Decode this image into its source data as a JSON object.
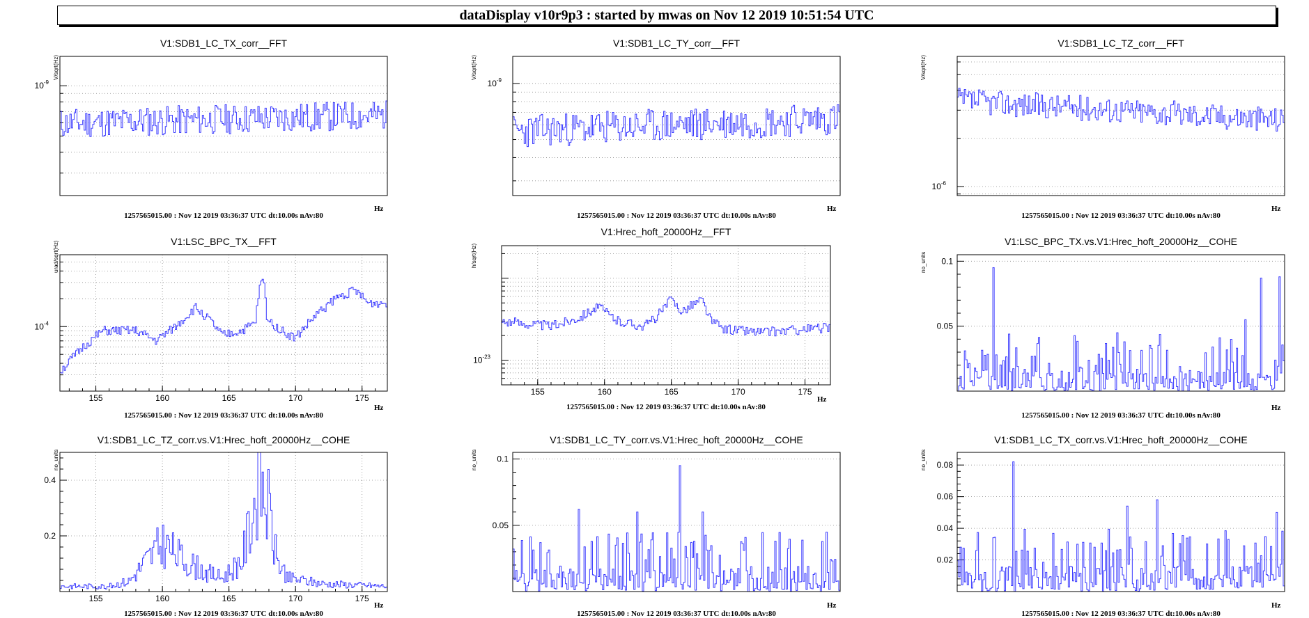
{
  "header": {
    "title": "dataDisplay v10r9p3 : started by mwas on Nov 12 2019 10:51:54 UTC"
  },
  "colors": {
    "trace": "#3a3aff",
    "grid": "#888888",
    "axis": "#000000"
  },
  "chart_data": [
    {
      "type": "line",
      "title": "V1:SDB1_LC_TX_corr__FFT",
      "ylabel": "V/sqrt(Hz)",
      "xlabel": "Hz",
      "footer": "1257565015.00 : Nov 12 2019 03:36:37 UTC dt:10.00s nAv:80",
      "yscale": "log",
      "ylim": [
        2.2e-10,
        1.5e-09
      ],
      "yticks": [
        {
          "v": 1e-09,
          "base": "10",
          "exp": "-9"
        }
      ],
      "xticks": [],
      "grid": true,
      "trace": {
        "kind": "noise",
        "base": 6.3e-10,
        "amp": 0.09,
        "trend": 0.05,
        "seed": 11
      }
    },
    {
      "type": "line",
      "title": "V1:SDB1_LC_TY_corr__FFT",
      "ylabel": "V/sqrt(Hz)",
      "xlabel": "Hz",
      "footer": "1257565015.00 : Nov 12 2019 03:36:37 UTC dt:10.00s nAv:80",
      "yscale": "log",
      "ylim": [
        2.5e-10,
        1.4e-09
      ],
      "yticks": [
        {
          "v": 1e-09,
          "base": "10",
          "exp": "-9"
        }
      ],
      "xticks": [],
      "grid": true,
      "trace": {
        "kind": "noise",
        "base": 6e-10,
        "amp": 0.09,
        "trend": 0.07,
        "seed": 23
      }
    },
    {
      "type": "line",
      "title": "V1:SDB1_LC_TZ_corr__FFT",
      "ylabel": "V/sqrt(Hz)",
      "xlabel": "Hz",
      "footer": "1257565015.00 : Nov 12 2019 03:36:37 UTC dt:10.00s nAv:80",
      "yscale": "log",
      "ylim": [
        8.8e-07,
        6.5e-06
      ],
      "yticks": [
        {
          "v": 1e-06,
          "base": "10",
          "exp": "-6"
        }
      ],
      "xticks": [],
      "grid": true,
      "trace": {
        "kind": "noise",
        "base": 3e-06,
        "amp": 0.08,
        "trend": -0.12,
        "seed": 37
      }
    },
    {
      "type": "line",
      "title": "V1:LSC_BPC_TX__FFT",
      "ylabel": "urad/sqrt(Hz)",
      "xlabel": "Hz",
      "footer": "1257565015.00 : Nov 12 2019 03:36:37 UTC dt:10.00s nAv:80",
      "yscale": "log",
      "ylim": [
        2e-05,
        0.0006
      ],
      "xlim": [
        152.3,
        176.9
      ],
      "yticks": [
        {
          "v": 0.0001,
          "base": "10",
          "exp": "-4"
        }
      ],
      "xticks": [
        155,
        160,
        165,
        170,
        175
      ],
      "grid": true,
      "trace": {
        "kind": "curve",
        "seed": 51,
        "amp": 0.05,
        "pts": [
          [
            152.3,
            3.3e-05
          ],
          [
            154,
            6e-05
          ],
          [
            155.5,
            9e-05
          ],
          [
            158,
            9e-05
          ],
          [
            159.5,
            7e-05
          ],
          [
            161,
            0.0001
          ],
          [
            162.5,
            0.00016
          ],
          [
            163.5,
            0.00012
          ],
          [
            164.5,
            8e-05
          ],
          [
            166,
            9e-05
          ],
          [
            167,
            0.00011
          ],
          [
            167.3,
            0.00025
          ],
          [
            167.6,
            0.00035
          ],
          [
            167.9,
            0.00012
          ],
          [
            169,
            9e-05
          ],
          [
            170,
            7.5e-05
          ],
          [
            171.5,
            0.00013
          ],
          [
            173,
            0.0002
          ],
          [
            174.5,
            0.00025
          ],
          [
            175.5,
            0.00018
          ],
          [
            176.9,
            0.00018
          ]
        ]
      }
    },
    {
      "type": "line",
      "title": "V1:Hrec_hoft_20000Hz__FFT",
      "ylabel": "h/sqrt(Hz)",
      "xlabel": "Hz",
      "footer": "1257565015.00 : Nov 12 2019 03:36:37 UTC dt:10.00s nAv:80",
      "yscale": "log",
      "ylim": [
        5e-24,
        2.5e-22
      ],
      "xlim": [
        152.3,
        176.9
      ],
      "yticks": [
        {
          "v": 1e-23,
          "base": "10",
          "exp": "-23"
        }
      ],
      "xticks": [
        155,
        160,
        165,
        170,
        175
      ],
      "grid": true,
      "trace": {
        "kind": "curve",
        "seed": 63,
        "amp": 0.06,
        "pts": [
          [
            152.3,
            3e-23
          ],
          [
            156,
            2.6e-23
          ],
          [
            158,
            3.3e-23
          ],
          [
            159.5,
            4.5e-23
          ],
          [
            161,
            3e-23
          ],
          [
            163,
            2.6e-23
          ],
          [
            164,
            3.5e-23
          ],
          [
            165,
            5.5e-23
          ],
          [
            165.8,
            4e-23
          ],
          [
            166.8,
            5e-23
          ],
          [
            167.3,
            5.5e-23
          ],
          [
            168,
            3e-23
          ],
          [
            169,
            2.4e-23
          ],
          [
            172,
            2.2e-23
          ],
          [
            176.9,
            2.5e-23
          ]
        ]
      }
    },
    {
      "type": "line",
      "title": "V1:LSC_BPC_TX.vs.V1:Hrec_hoft_20000Hz__COHE",
      "ylabel": "no_units",
      "xlabel": "Hz",
      "footer": "1257565015.00 : Nov 12 2019 03:36:37 UTC dt:10.00s nAv:80",
      "yscale": "lin",
      "ylim": [
        0,
        0.105
      ],
      "yticks": [
        {
          "v": 0.05,
          "label": "0.05"
        },
        {
          "v": 0.1,
          "label": "0.1"
        }
      ],
      "xticks": [],
      "grid": true,
      "trace": {
        "kind": "cohe",
        "seed": 71,
        "max": 0.045,
        "spikes": [
          [
            0.11,
            0.095
          ],
          [
            0.88,
            0.055
          ],
          [
            0.93,
            0.087
          ],
          [
            0.985,
            0.088
          ]
        ]
      }
    },
    {
      "type": "line",
      "title": "V1:SDB1_LC_TZ_corr.vs.V1:Hrec_hoft_20000Hz__COHE",
      "ylabel": "no_units",
      "xlabel": "Hz",
      "footer": "1257565015.00 : Nov 12 2019 03:36:37 UTC dt:10.00s nAv:80",
      "yscale": "lin",
      "ylim": [
        0,
        0.5
      ],
      "xlim": [
        152.3,
        176.9
      ],
      "yticks": [
        {
          "v": 0.2,
          "label": "0.2"
        },
        {
          "v": 0.4,
          "label": "0.4"
        }
      ],
      "xticks": [
        155,
        160,
        165,
        170,
        175
      ],
      "grid": true,
      "trace": {
        "kind": "cohecurve",
        "seed": 83,
        "pts": [
          [
            152.3,
            0.02
          ],
          [
            156,
            0.02
          ],
          [
            157.5,
            0.04
          ],
          [
            158.5,
            0.1
          ],
          [
            160,
            0.18
          ],
          [
            161.5,
            0.12
          ],
          [
            163,
            0.08
          ],
          [
            164.5,
            0.05
          ],
          [
            166,
            0.12
          ],
          [
            166.8,
            0.3
          ],
          [
            167.3,
            0.43
          ],
          [
            168,
            0.3
          ],
          [
            168.6,
            0.12
          ],
          [
            169.5,
            0.05
          ],
          [
            172,
            0.03
          ],
          [
            176.9,
            0.02
          ]
        ]
      }
    },
    {
      "type": "line",
      "title": "V1:SDB1_LC_TY_corr.vs.V1:Hrec_hoft_20000Hz__COHE",
      "ylabel": "no_units",
      "xlabel": "Hz",
      "footer": "1257565015.00 : Nov 12 2019 03:36:37 UTC dt:10.00s nAv:80",
      "yscale": "lin",
      "ylim": [
        0,
        0.105
      ],
      "yticks": [
        {
          "v": 0.05,
          "label": "0.05"
        },
        {
          "v": 0.1,
          "label": "0.1"
        }
      ],
      "xticks": [],
      "grid": true,
      "trace": {
        "kind": "cohe",
        "seed": 97,
        "max": 0.045,
        "spikes": [
          [
            0.51,
            0.095
          ],
          [
            0.2,
            0.062
          ],
          [
            0.38,
            0.06
          ],
          [
            0.58,
            0.06
          ]
        ]
      }
    },
    {
      "type": "line",
      "title": "V1:SDB1_LC_TX_corr.vs.V1:Hrec_hoft_20000Hz__COHE",
      "ylabel": "no_units",
      "xlabel": "Hz",
      "footer": "1257565015.00 : Nov 12 2019 03:36:37 UTC dt:10.00s nAv:80",
      "yscale": "lin",
      "ylim": [
        0,
        0.088
      ],
      "yticks": [
        {
          "v": 0.02,
          "label": "0.02"
        },
        {
          "v": 0.04,
          "label": "0.04"
        },
        {
          "v": 0.06,
          "label": "0.06"
        },
        {
          "v": 0.08,
          "label": "0.08"
        }
      ],
      "xticks": [],
      "grid": true,
      "trace": {
        "kind": "cohe",
        "seed": 103,
        "max": 0.04,
        "spikes": [
          [
            0.17,
            0.082
          ],
          [
            0.61,
            0.058
          ],
          [
            0.52,
            0.054
          ],
          [
            0.98,
            0.05
          ]
        ]
      }
    }
  ]
}
